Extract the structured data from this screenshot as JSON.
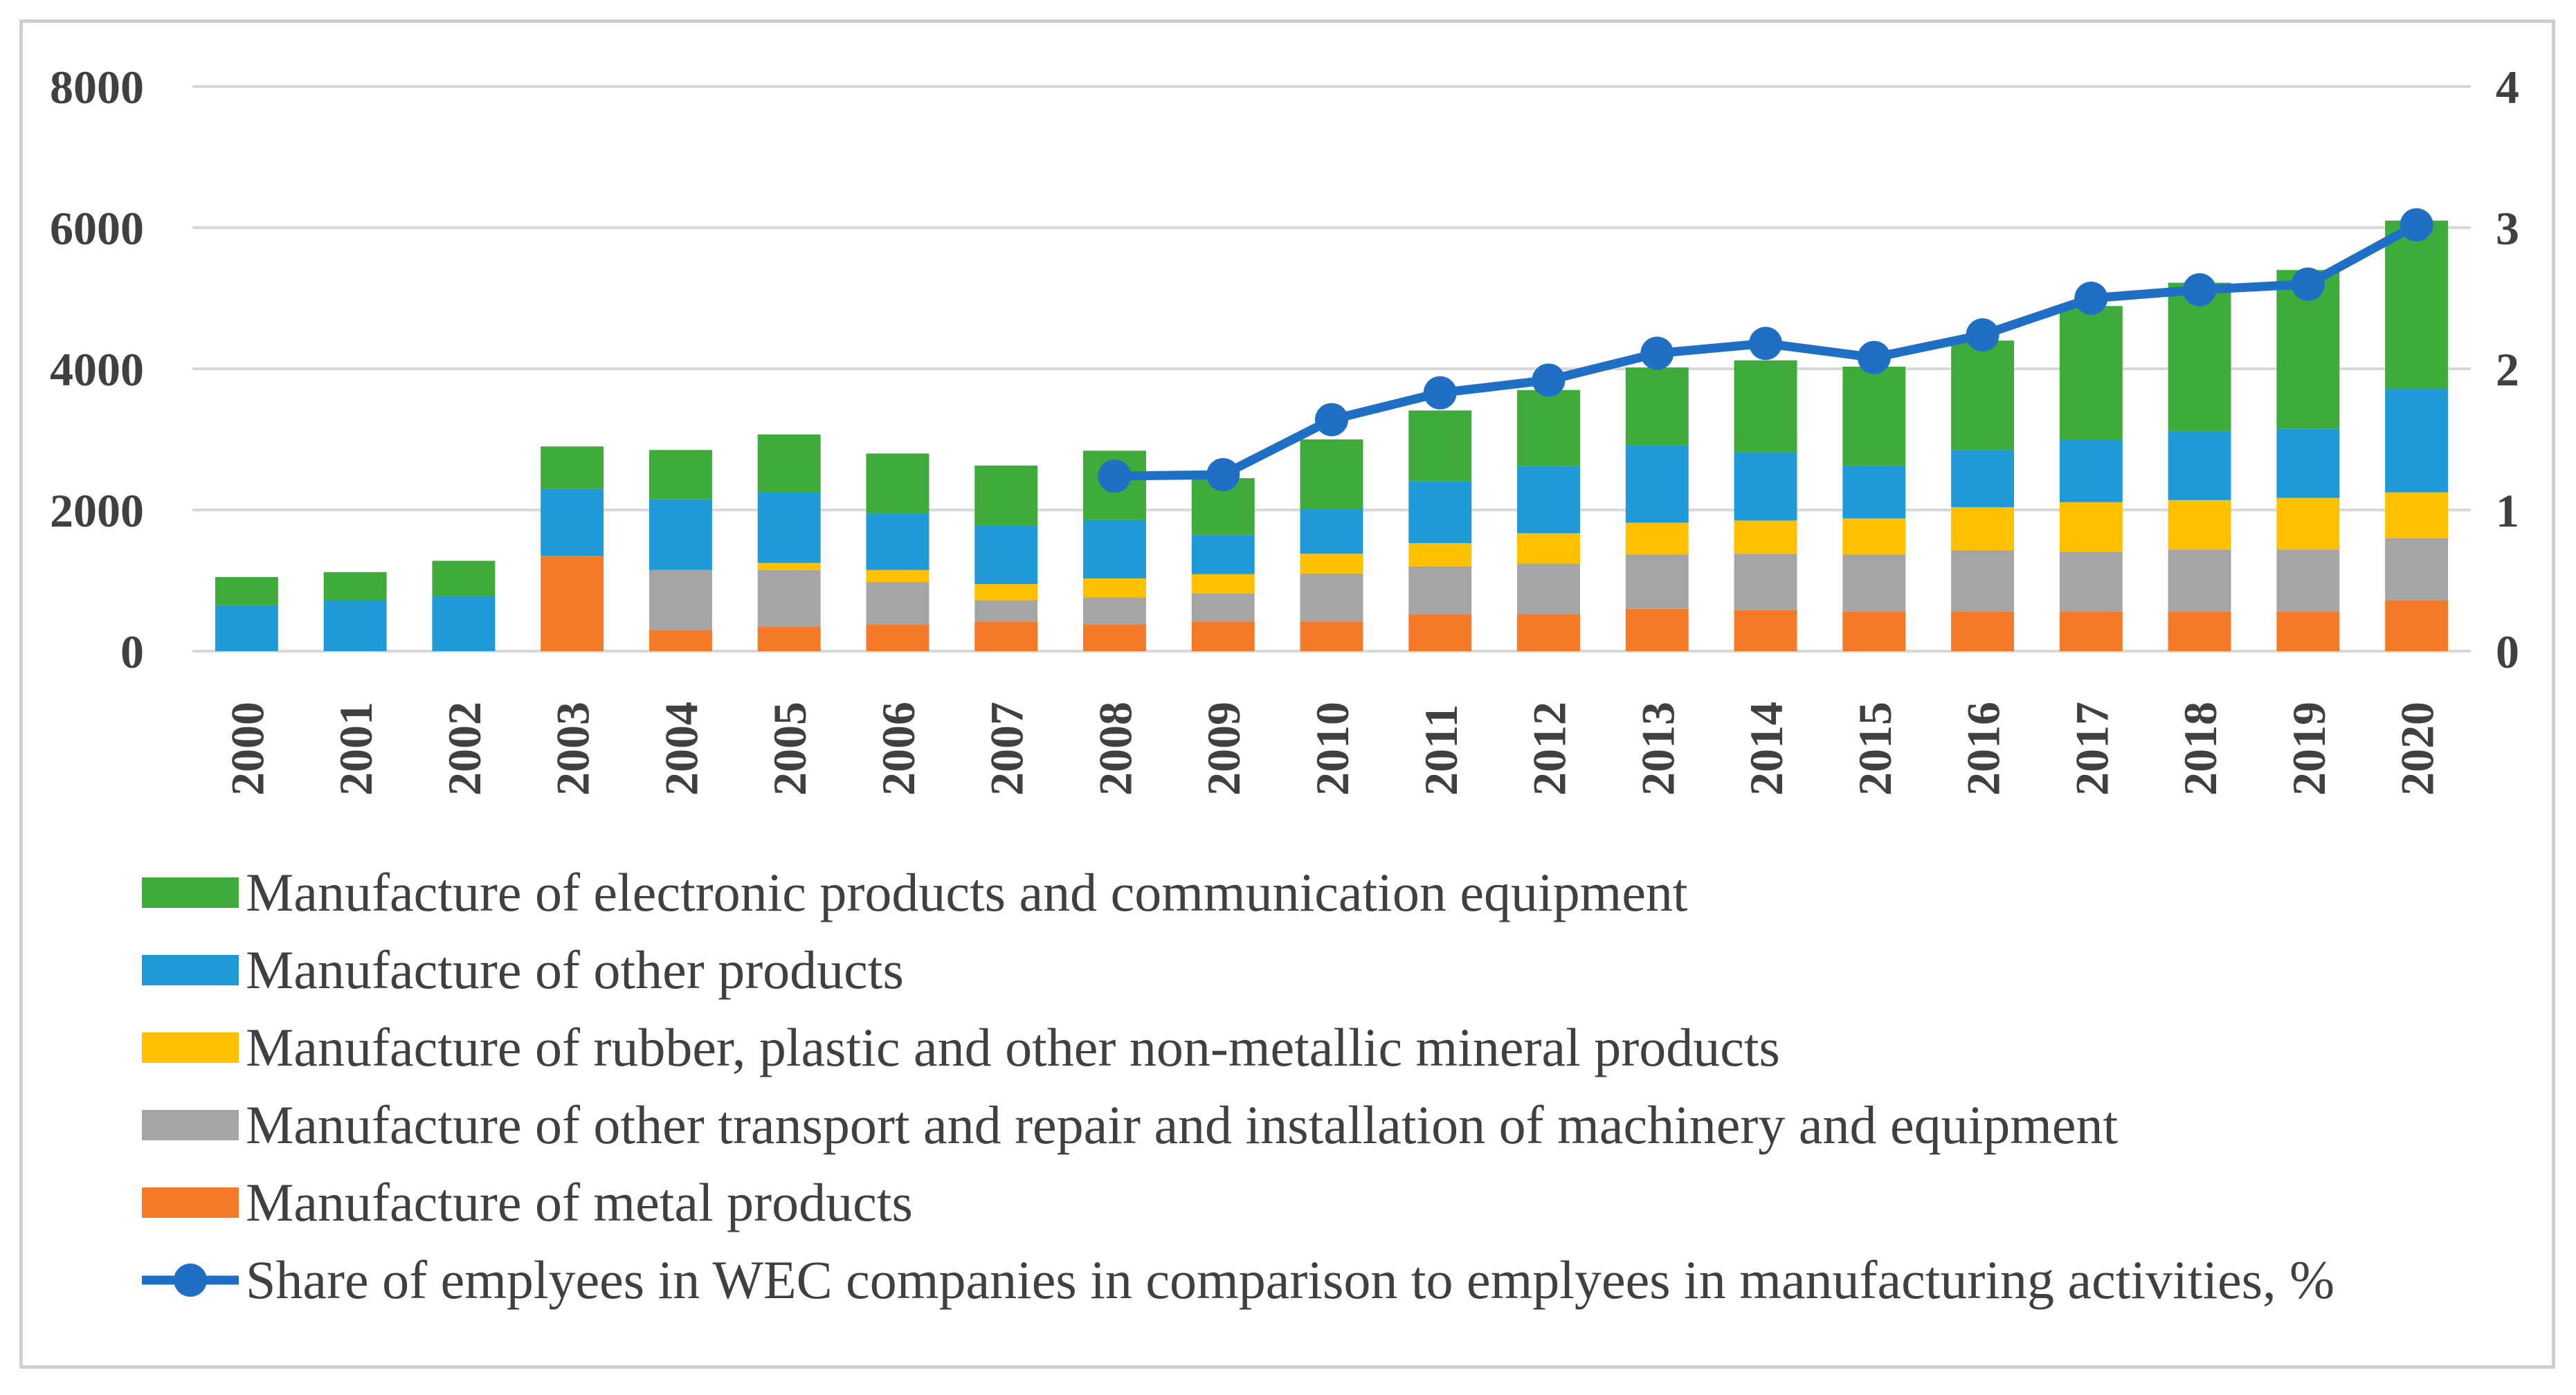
{
  "chart_data": {
    "type": "bar",
    "stacked": true,
    "categories": [
      "2000",
      "2001",
      "2002",
      "2003",
      "2004",
      "2005",
      "2006",
      "2007",
      "2008",
      "2009",
      "2010",
      "2011",
      "2012",
      "2013",
      "2014",
      "2015",
      "2016",
      "2017",
      "2018",
      "2019",
      "2020"
    ],
    "ylim": [
      0,
      8000
    ],
    "y_ticks": [
      "0",
      "2000",
      "4000",
      "6000",
      "8000"
    ],
    "y2lim": [
      0,
      4
    ],
    "y2_ticks": [
      "0",
      "1",
      "2",
      "3",
      "4"
    ],
    "grid": true,
    "legend_position": "bottom",
    "series": [
      {
        "name": "Manufacture of metal products",
        "color": "#f47a28",
        "values": [
          0,
          0,
          0,
          1350,
          300,
          350,
          380,
          420,
          380,
          420,
          420,
          520,
          520,
          600,
          580,
          560,
          560,
          560,
          560,
          560,
          720
        ]
      },
      {
        "name": "Manufacture of other transport  and repair and installation of machinery and equipment",
        "color": "#a5a5a5",
        "values": [
          0,
          0,
          0,
          0,
          850,
          800,
          600,
          300,
          380,
          400,
          680,
          680,
          720,
          770,
          800,
          810,
          870,
          850,
          880,
          880,
          880
        ]
      },
      {
        "name": "Manufacture of rubber, plastic and other non-metallic mineral products",
        "color": "#ffc000",
        "values": [
          0,
          0,
          0,
          0,
          0,
          100,
          170,
          230,
          270,
          270,
          280,
          330,
          430,
          450,
          470,
          510,
          610,
          700,
          700,
          730,
          650
        ]
      },
      {
        "name": "Manufacture of other products",
        "color": "#1f9ad6",
        "values": [
          650,
          720,
          780,
          950,
          1000,
          1000,
          800,
          830,
          830,
          560,
          630,
          880,
          950,
          1100,
          970,
          750,
          810,
          880,
          980,
          980,
          1470
        ]
      },
      {
        "name": "Manufacture of electronic products and communication equipment",
        "color": "#3fab3a",
        "values": [
          400,
          400,
          500,
          600,
          700,
          820,
          850,
          850,
          980,
          800,
          990,
          1000,
          1080,
          1100,
          1300,
          1400,
          1550,
          1900,
          2100,
          2250,
          2380
        ]
      }
    ],
    "line_series": {
      "name": "Share of emplyees in WEC companies in comparison to emplyees in manufacturing activities, %",
      "color": "#1f6fc5",
      "axis": "secondary",
      "values": [
        null,
        null,
        null,
        null,
        null,
        null,
        null,
        null,
        1.24,
        1.25,
        1.64,
        1.83,
        1.92,
        2.11,
        2.18,
        2.08,
        2.24,
        2.5,
        2.56,
        2.6,
        3.02
      ]
    },
    "legend_order": [
      "Manufacture of electronic products and communication equipment",
      "Manufacture of other products",
      "Manufacture of rubber, plastic and other non-metallic mineral products",
      "Manufacture of other transport  and repair and installation of machinery and equipment",
      "Manufacture of metal products",
      "Share of emplyees in WEC companies in comparison to emplyees in manufacturing activities, %"
    ]
  }
}
